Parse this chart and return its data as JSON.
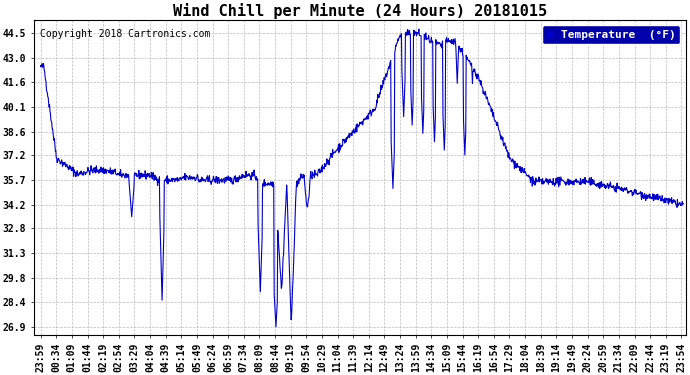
{
  "title": "Wind Chill per Minute (24 Hours) 20181015",
  "copyright_text": "Copyright 2018 Cartronics.com",
  "legend_label": "Temperature  (°F)",
  "background_color": "#ffffff",
  "plot_bg_color": "#ffffff",
  "line_color": "#0000cc",
  "line_width": 0.8,
  "yticks": [
    26.9,
    28.4,
    29.8,
    31.3,
    32.8,
    34.2,
    35.7,
    37.2,
    38.6,
    40.1,
    41.6,
    43.0,
    44.5
  ],
  "ylim": [
    26.4,
    45.3
  ],
  "grid_color": "#bbbbbb",
  "grid_style": "--",
  "title_fontsize": 11,
  "tick_fontsize": 7,
  "copyright_fontsize": 7,
  "legend_fontsize": 8
}
